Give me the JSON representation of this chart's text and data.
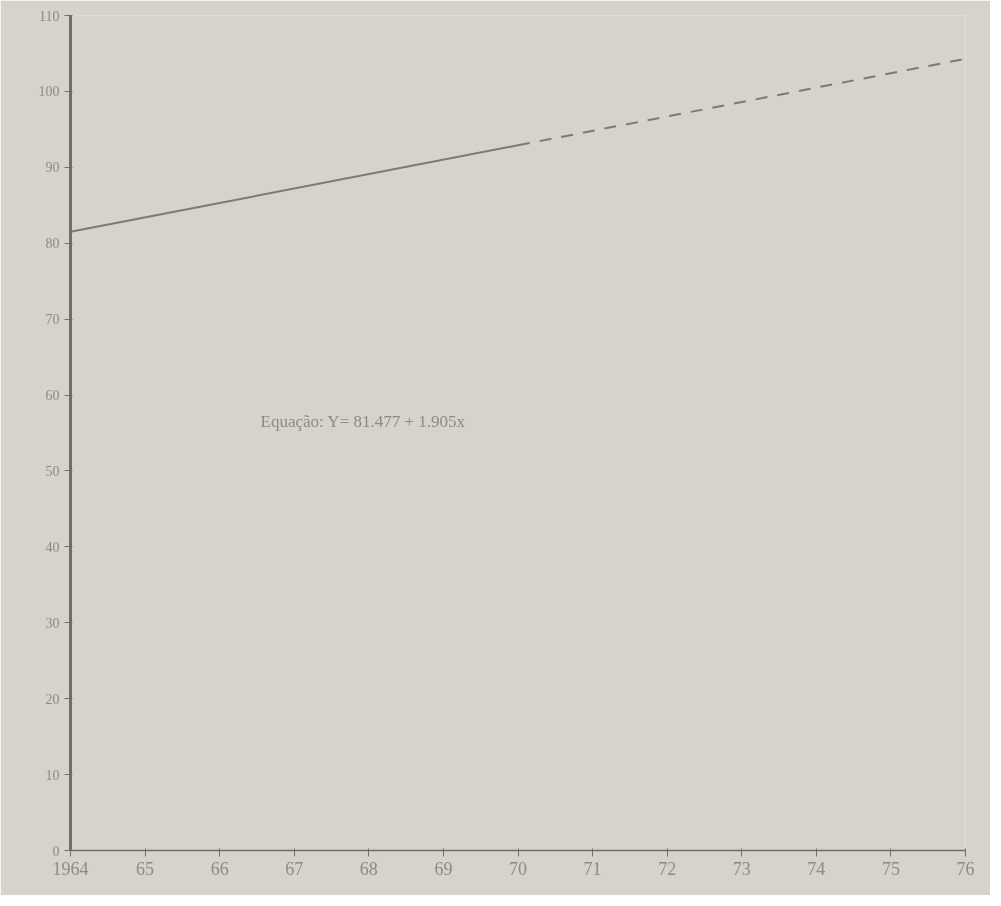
{
  "chart_data": {
    "type": "line",
    "x": [
      1964,
      1970
    ],
    "series": [
      {
        "color": "#7a7a78",
        "values": [
          81.5,
          92.9
        ],
        "line_style": "solid"
      },
      {
        "color": "#7a7a78",
        "x": [
          1970,
          1976
        ],
        "values": [
          92.9,
          104.3
        ],
        "line_style": "dashed"
      }
    ],
    "xlim": [
      1964,
      1976
    ],
    "ylim": [
      0,
      110
    ],
    "xticks": [
      {
        "value": 1964,
        "label": "1964"
      },
      {
        "value": 1965,
        "label": "65"
      },
      {
        "value": 1966,
        "label": "66"
      },
      {
        "value": 1967,
        "label": "67"
      },
      {
        "value": 1968,
        "label": "68"
      },
      {
        "value": 1969,
        "label": "69"
      },
      {
        "value": 1970,
        "label": "70"
      },
      {
        "value": 1971,
        "label": "71"
      },
      {
        "value": 1972,
        "label": "72"
      },
      {
        "value": 1973,
        "label": "73"
      },
      {
        "value": 1974,
        "label": "74"
      },
      {
        "value": 1975,
        "label": "75"
      },
      {
        "value": 1976,
        "label": "76"
      }
    ],
    "yticks": [
      0,
      10,
      20,
      30,
      40,
      50,
      60,
      70,
      80,
      90,
      100,
      110
    ],
    "annotations": [
      "Equação:  Y= 81.477 + 1.905x"
    ],
    "grid": false,
    "marker": "none"
  }
}
